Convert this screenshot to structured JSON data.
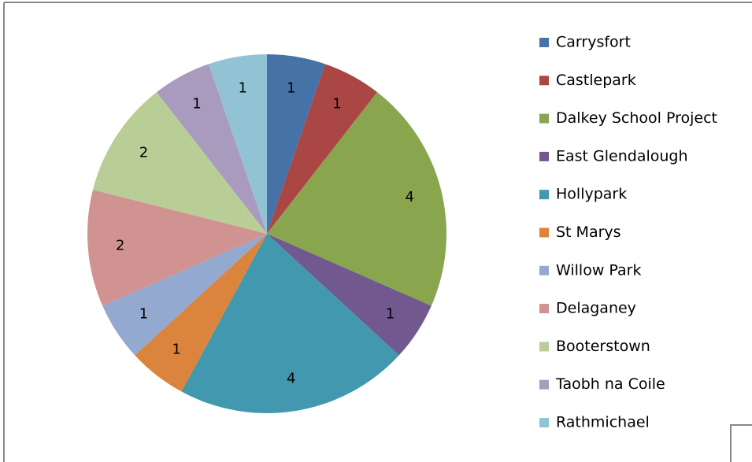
{
  "chart_data": {
    "type": "pie",
    "categories": [
      "Carrysfort",
      "Castlepark",
      "Dalkey School Project",
      "East Glendalough",
      "Hollypark",
      "St Marys",
      "Willow Park",
      "Delaganey",
      "Booterstown",
      "Taobh na Coile",
      "Rathmichael"
    ],
    "values": [
      1,
      1,
      4,
      1,
      4,
      1,
      1,
      2,
      2,
      1,
      1
    ],
    "colors": [
      "#4572a7",
      "#aa4643",
      "#89a54e",
      "#71588f",
      "#4198af",
      "#db843d",
      "#93a9cf",
      "#d19392",
      "#b9cd96",
      "#a99bbd",
      "#92c3d5"
    ],
    "legend": "right"
  }
}
